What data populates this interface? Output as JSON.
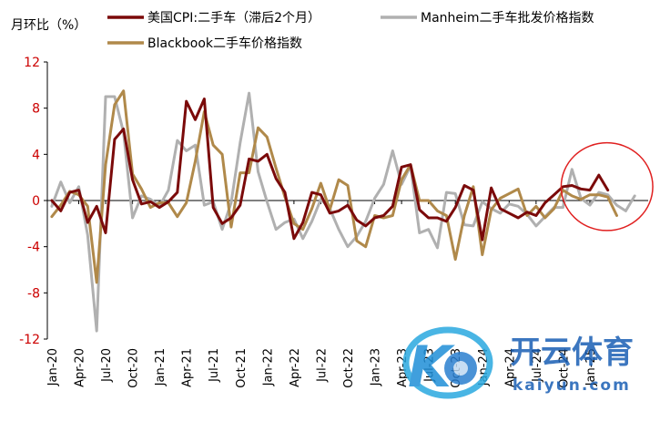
{
  "chart_data": {
    "type": "line",
    "ylabel": "月环比（%）",
    "ylim": [
      -12,
      12
    ],
    "yticks": [
      "12",
      "8",
      "4",
      "0",
      "-4",
      "-8",
      "-12"
    ],
    "ytick_values": [
      12,
      8,
      4,
      0,
      -4,
      -8,
      -12
    ],
    "x": [
      "2020-01",
      "2020-02",
      "2020-03",
      "2020-04",
      "2020-05",
      "2020-06",
      "2020-07",
      "2020-08",
      "2020-09",
      "2020-10",
      "2020-11",
      "2020-12",
      "2021-01",
      "2021-02",
      "2021-03",
      "2021-04",
      "2021-05",
      "2021-06",
      "2021-07",
      "2021-08",
      "2021-09",
      "2021-10",
      "2021-11",
      "2021-12",
      "2022-01",
      "2022-02",
      "2022-03",
      "2022-04",
      "2022-05",
      "2022-06",
      "2022-07",
      "2022-08",
      "2022-09",
      "2022-10",
      "2022-11",
      "2022-12",
      "2023-01",
      "2023-02",
      "2023-03",
      "2023-04",
      "2023-05",
      "2023-06",
      "2023-07",
      "2023-08",
      "2023-09",
      "2023-10",
      "2023-11",
      "2023-12",
      "2024-01",
      "2024-02",
      "2024-03",
      "2024-04",
      "2024-05",
      "2024-06",
      "2024-07",
      "2024-08",
      "2024-09",
      "2024-10",
      "2024-11",
      "2024-12",
      "2025-01",
      "2025-02",
      "2025-03",
      "2025-04",
      "2025-05",
      "2025-06",
      "2025-07"
    ],
    "xtick_labels": [
      {
        "month": "2020-01",
        "label": "Jan-20"
      },
      {
        "month": "2020-04",
        "label": "Apr-20"
      },
      {
        "month": "2020-07",
        "label": "Jul-20"
      },
      {
        "month": "2020-10",
        "label": "Oct-20"
      },
      {
        "month": "2021-01",
        "label": "Jan-21"
      },
      {
        "month": "2021-04",
        "label": "Apr-21"
      },
      {
        "month": "2021-07",
        "label": "Jul-21"
      },
      {
        "month": "2021-10",
        "label": "Oct-21"
      },
      {
        "month": "2022-01",
        "label": "Jan-22"
      },
      {
        "month": "2022-04",
        "label": "Apr-22"
      },
      {
        "month": "2022-07",
        "label": "Jul-22"
      },
      {
        "month": "2022-10",
        "label": "Oct-22"
      },
      {
        "month": "2023-01",
        "label": "Jan-23"
      },
      {
        "month": "2023-04",
        "label": "Apr-23"
      },
      {
        "month": "2023-07",
        "label": "Jul-23"
      },
      {
        "month": "2023-10",
        "label": "Oct-23"
      },
      {
        "month": "2024-01",
        "label": "Jan-24"
      },
      {
        "month": "2024-04",
        "label": "Apr-24"
      },
      {
        "month": "2024-07",
        "label": "Jul-24"
      },
      {
        "month": "2024-10",
        "label": "Oct-24"
      },
      {
        "month": "2025-01",
        "label": "Jan-25"
      }
    ],
    "series": [
      {
        "name": "美国CPI:二手车（滞后2个月）",
        "color": "#7b0a0a",
        "values": [
          0.0,
          -0.9,
          0.7,
          0.9,
          -1.9,
          -0.5,
          -2.8,
          5.3,
          6.2,
          1.8,
          -0.3,
          -0.1,
          -0.6,
          -0.1,
          0.7,
          8.6,
          7.0,
          8.8,
          -0.6,
          -2.0,
          -1.5,
          -0.4,
          3.6,
          3.4,
          4.0,
          1.9,
          0.7,
          -3.3,
          -1.9,
          0.7,
          0.5,
          -1.1,
          -0.9,
          -0.4,
          -1.7,
          -2.2,
          -1.5,
          -1.3,
          -0.5,
          2.9,
          3.1,
          -0.8,
          -1.5,
          -1.5,
          -1.8,
          -0.6,
          1.3,
          0.9,
          -3.4,
          1.1,
          -0.7,
          -1.1,
          -1.5,
          -1.0,
          -1.3,
          -0.2,
          0.5,
          1.2,
          1.3,
          1.0,
          0.9,
          2.2,
          0.9,
          null,
          null,
          null,
          null
        ]
      },
      {
        "name": "Manheim二手车批发价格指数",
        "color": "#b0b0b0",
        "values": [
          -0.5,
          1.6,
          -0.2,
          1.2,
          -3.0,
          -11.3,
          9.0,
          9.0,
          5.9,
          -1.5,
          0.4,
          0.1,
          -0.5,
          0.9,
          5.2,
          4.3,
          4.8,
          -0.4,
          -0.1,
          -2.5,
          -0.2,
          5.0,
          9.3,
          2.5,
          -0.1,
          -2.5,
          -1.9,
          -1.6,
          -3.3,
          -1.8,
          0.1,
          -0.7,
          -2.5,
          -4.0,
          -3.1,
          -1.8,
          0.2,
          1.4,
          4.3,
          1.4,
          3.0,
          -2.8,
          -2.5,
          -4.1,
          0.7,
          0.6,
          -2.1,
          -2.2,
          -0.1,
          -0.7,
          -1.1,
          -0.3,
          -0.5,
          -1.2,
          -2.2,
          -1.4,
          -0.6,
          -0.6,
          2.7,
          0.2,
          -0.4,
          0.7,
          0.5,
          -0.4,
          -0.9,
          0.4,
          null
        ]
      },
      {
        "name": "Blackbook二手车价格指数",
        "color": "#b0894a",
        "values": [
          -1.4,
          -0.4,
          0.8,
          0.5,
          -0.5,
          -7.1,
          3.1,
          8.3,
          9.5,
          2.3,
          1.0,
          -0.6,
          -0.2,
          -0.2,
          -1.4,
          -0.2,
          3.4,
          7.7,
          4.8,
          4.0,
          -2.3,
          2.4,
          2.4,
          6.3,
          5.5,
          2.8,
          0.3,
          -2.0,
          -2.5,
          -0.7,
          1.5,
          -0.8,
          1.8,
          1.3,
          -3.5,
          -4.0,
          -1.3,
          -1.5,
          -1.3,
          1.8,
          3.1,
          0.0,
          0.0,
          -0.9,
          -1.3,
          -5.1,
          -1.3,
          1.2,
          -4.7,
          -0.8,
          0.2,
          0.6,
          1.0,
          -1.3,
          -0.5,
          -1.5,
          -0.7,
          0.9,
          0.4,
          0.1,
          0.5,
          0.5,
          0.3,
          -1.3,
          null,
          null,
          null
        ]
      }
    ],
    "legend": "top",
    "grid": false,
    "annotations": [
      {
        "type": "ellipse",
        "color": "#e02020",
        "x_range": [
          "2024-10",
          "2025-07"
        ],
        "y_range": [
          -2.6,
          5.0
        ]
      }
    ]
  },
  "watermark": {
    "text_cn": "开云体育",
    "text_en": "kaiyun.com",
    "logo_letter": "K"
  }
}
